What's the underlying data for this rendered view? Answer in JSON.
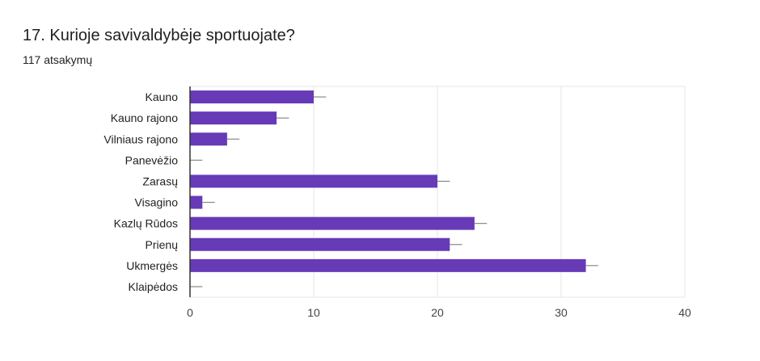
{
  "header": {
    "title": "17. Kurioje savivaldybėje sportuojate?",
    "subtitle": "117 atsakymų"
  },
  "chart_data": {
    "type": "bar",
    "orientation": "horizontal",
    "categories": [
      "Kauno",
      "Kauno rajono",
      "Vilniaus rajono",
      "Panevėžio",
      "Zarasų",
      "Visagino",
      "Kazlų Rūdos",
      "Prienų",
      "Ukmergės",
      "Klaipėdos"
    ],
    "values": [
      10,
      7,
      3,
      0,
      20,
      1,
      23,
      21,
      32,
      0
    ],
    "xlim": [
      0,
      40
    ],
    "xticks": [
      0,
      10,
      20,
      30,
      40
    ],
    "grid": true,
    "error_bars": true,
    "bar_color": "#673ab7",
    "title": "",
    "xlabel": "",
    "ylabel": ""
  }
}
